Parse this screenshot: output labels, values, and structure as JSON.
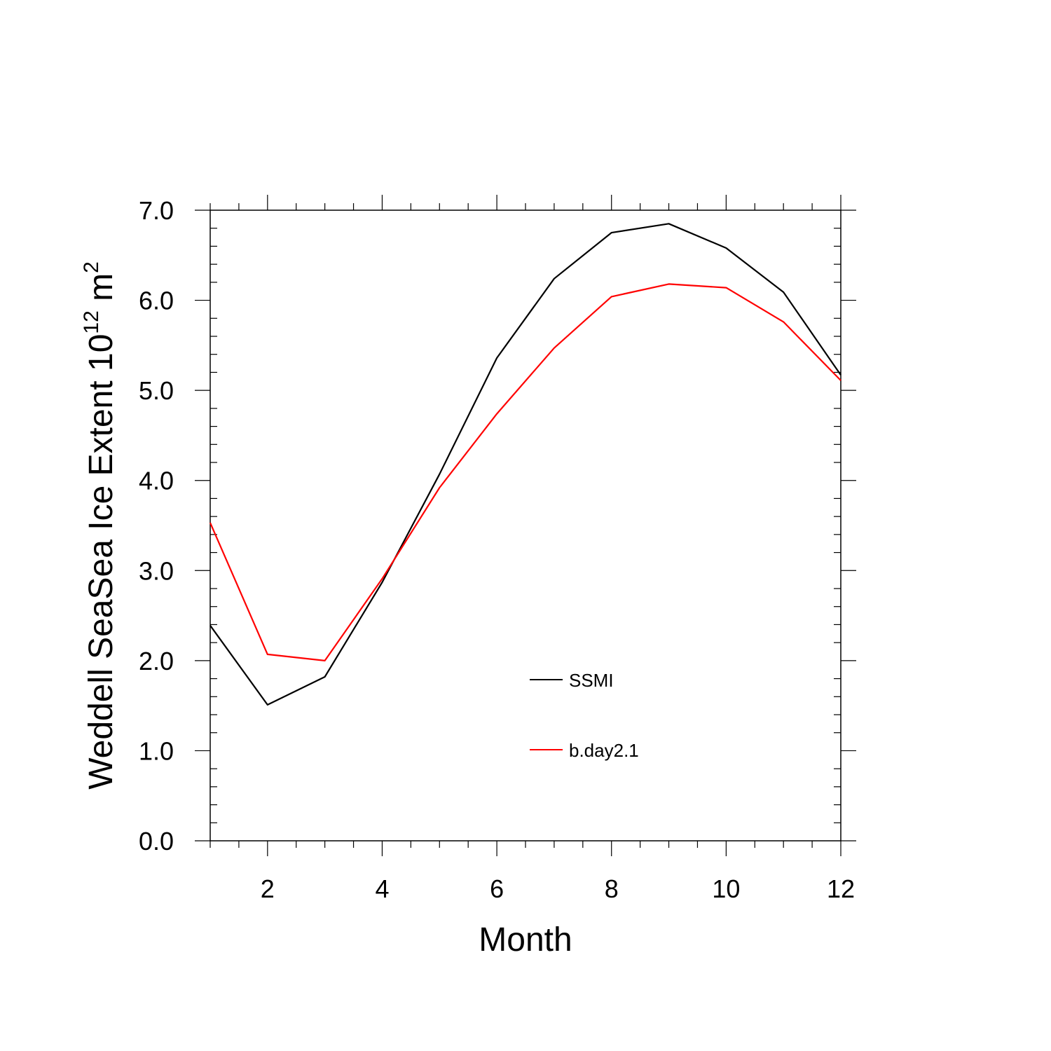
{
  "chart_data": {
    "type": "line",
    "title": "",
    "xlabel": "Month",
    "ylabel": {
      "prefix": "Weddell SeaSea Ice Extent 10",
      "exponent": "12",
      "unit": "m",
      "unit_exponent": "2"
    },
    "xlim": [
      1,
      12
    ],
    "ylim": [
      0,
      7
    ],
    "x_ticks": [
      2,
      4,
      6,
      8,
      10,
      12
    ],
    "y_ticks": [
      0,
      1,
      2,
      3,
      4,
      5,
      6,
      7
    ],
    "y_tick_labels": [
      "0.0",
      "1.0",
      "2.0",
      "3.0",
      "4.0",
      "5.0",
      "6.0",
      "7.0"
    ],
    "x": [
      1,
      2,
      3,
      4,
      5,
      6,
      7,
      8,
      9,
      10,
      11,
      12
    ],
    "series": [
      {
        "name": "SSMI",
        "color": "#000000",
        "values": [
          2.39,
          1.51,
          1.82,
          2.87,
          4.07,
          5.36,
          6.24,
          6.75,
          6.85,
          6.58,
          6.09,
          5.17
        ]
      },
      {
        "name": "b.day2.1",
        "color": "#ff0000",
        "values": [
          3.53,
          2.07,
          2.0,
          2.91,
          3.92,
          4.74,
          5.47,
          6.04,
          6.18,
          6.14,
          5.76,
          5.11
        ]
      }
    ],
    "grid": false,
    "legend_placement": "center-bottom"
  }
}
